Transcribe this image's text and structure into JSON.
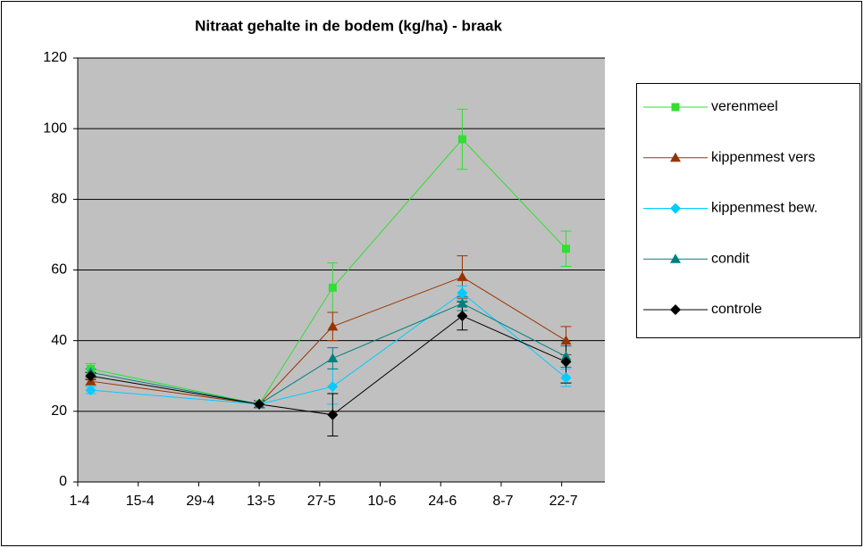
{
  "chart_data": {
    "type": "line",
    "title": "Nitraat gehalte in de bodem (kg/ha) - braak",
    "x": [
      "4-4",
      "13-5",
      "30-5",
      "29-6",
      "23-7"
    ],
    "xlim": [
      "1-4",
      "1-8"
    ],
    "xticks": [
      "1-4",
      "15-4",
      "29-4",
      "13-5",
      "27-5",
      "10-6",
      "24-6",
      "8-7",
      "22-7"
    ],
    "ylim": [
      0,
      120
    ],
    "yticks": [
      0,
      20,
      40,
      60,
      80,
      100,
      120
    ],
    "grid": true,
    "legend": "right",
    "series": [
      {
        "name": "verenmeel",
        "color": "#33dd33",
        "marker": "square",
        "values": [
          32,
          22,
          55,
          97,
          66
        ],
        "errors": [
          1.5,
          1,
          7,
          8.5,
          5
        ]
      },
      {
        "name": "kippenmest vers",
        "color": "#993300",
        "marker": "triangle",
        "values": [
          28.5,
          22,
          44,
          58,
          40
        ],
        "errors": [
          1,
          1,
          4,
          6,
          4
        ]
      },
      {
        "name": "kippenmest bew.",
        "color": "#00ccff",
        "marker": "diamond",
        "values": [
          26,
          22,
          27,
          53.5,
          29.5
        ],
        "errors": [
          1,
          1,
          5,
          2,
          2.5
        ]
      },
      {
        "name": "condit",
        "color": "#008080",
        "marker": "triangle",
        "values": [
          31,
          22,
          35,
          50.5,
          35.5
        ],
        "errors": [
          1,
          1,
          3,
          2,
          3
        ]
      },
      {
        "name": "controle",
        "color": "#000000",
        "marker": "diamond",
        "values": [
          30,
          22,
          19,
          47,
          34
        ],
        "errors": [
          1,
          1,
          6,
          4,
          6
        ]
      }
    ]
  }
}
